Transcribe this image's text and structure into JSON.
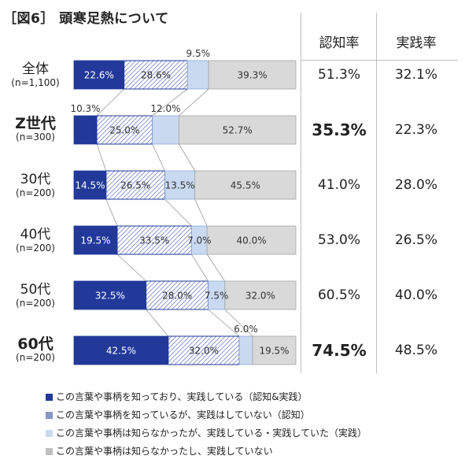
{
  "title": "［図6］ 頭寒足熱について",
  "table": {
    "headers": [
      "認知率",
      "実践率"
    ]
  },
  "rows": [
    {
      "name": "全体",
      "n": "(n=1,100)",
      "bold": false,
      "values": [
        22.6,
        28.6,
        9.5,
        39.3
      ],
      "labels": [
        "22.6%",
        "28.6%",
        "9.5%",
        "39.3%"
      ],
      "awareness": "51.3%",
      "practice": "32.1%",
      "awareness_bold": false
    },
    {
      "name": "Z世代",
      "n": "(n=300)",
      "bold": true,
      "values": [
        10.3,
        25.0,
        12.0,
        52.7
      ],
      "labels": [
        "10.3%",
        "25.0%",
        "12.0%",
        "52.7%"
      ],
      "awareness": "35.3%",
      "practice": "22.3%",
      "awareness_bold": true
    },
    {
      "name": "30代",
      "n": "(n=200)",
      "bold": false,
      "values": [
        14.5,
        26.5,
        13.5,
        45.5
      ],
      "labels": [
        "14.5%",
        "26.5%",
        "13.5%",
        "45.5%"
      ],
      "awareness": "41.0%",
      "practice": "28.0%",
      "awareness_bold": false
    },
    {
      "name": "40代",
      "n": "(n=200)",
      "bold": false,
      "values": [
        19.5,
        33.5,
        7.0,
        40.0
      ],
      "labels": [
        "19.5%",
        "33.5%",
        "7.0%",
        "40.0%"
      ],
      "awareness": "53.0%",
      "practice": "26.5%",
      "awareness_bold": false
    },
    {
      "name": "50代",
      "n": "(n=200)",
      "bold": false,
      "values": [
        32.5,
        28.0,
        7.5,
        32.0
      ],
      "labels": [
        "32.5%",
        "28.0%",
        "7.5%",
        "32.0%"
      ],
      "awareness": "60.5%",
      "practice": "40.0%",
      "awareness_bold": false
    },
    {
      "name": "60代",
      "n": "(n=200)",
      "bold": true,
      "values": [
        42.5,
        32.0,
        6.0,
        19.5
      ],
      "labels": [
        "42.5%",
        "32.0%",
        "6.0%",
        "19.5%"
      ],
      "awareness": "74.5%",
      "practice": "48.5%",
      "awareness_bold": true
    }
  ],
  "legend": [
    "この言葉や事柄を知っており、実践している（認知&実践）",
    "この言葉や事柄を知っているが、実践はしていない（認知）",
    "この言葉や事柄は知らなかったが、実践している・実践していた（実践）",
    "この言葉や事柄は知らなかったし、実践していない"
  ],
  "colors": {
    "s1": "#22399a",
    "s2_fill": "#ffffff",
    "s2_hatch": "#6f7fc7",
    "s2_border": "#22399a",
    "s3": "#c9d9f0",
    "s4": "#d9d9d9",
    "connector": "#9a9a9a"
  },
  "chart_data": {
    "type": "bar",
    "orientation": "horizontal-stacked-100",
    "categories": [
      "全体",
      "Z世代",
      "30代",
      "40代",
      "50代",
      "60代"
    ],
    "series": [
      {
        "name": "この言葉や事柄を知っており、実践している（認知&実践）",
        "values": [
          22.6,
          10.3,
          14.5,
          19.5,
          32.5,
          42.5
        ]
      },
      {
        "name": "この言葉や事柄を知っているが、実践はしていない（認知）",
        "values": [
          28.6,
          25.0,
          26.5,
          33.5,
          28.0,
          32.0
        ]
      },
      {
        "name": "この言葉や事柄は知らなかったが、実践している・実践していた（実践）",
        "values": [
          9.5,
          12.0,
          13.5,
          7.0,
          7.5,
          6.0
        ]
      },
      {
        "name": "この言葉や事柄は知らなかったし、実践していない",
        "values": [
          39.3,
          52.7,
          45.5,
          40.0,
          32.0,
          19.5
        ]
      }
    ],
    "xlim": [
      0,
      100
    ],
    "legend_position": "bottom"
  }
}
